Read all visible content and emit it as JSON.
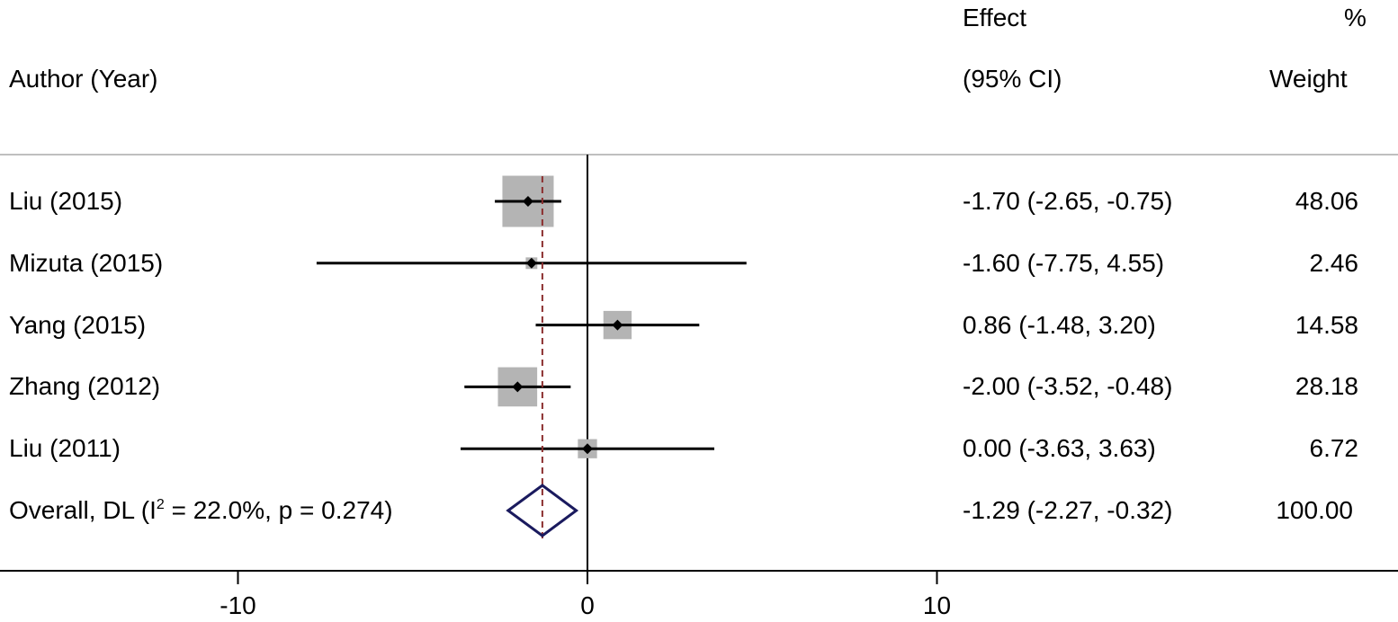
{
  "headers": {
    "study": "Author (Year)",
    "effect_line1": "Effect",
    "effect_line2": "(95% CI)",
    "weight_line1": "%",
    "weight_line2": "Weight"
  },
  "chart_data": {
    "type": "forest",
    "xticks": [
      -10,
      0,
      10
    ],
    "null_line": 0,
    "studies": [
      {
        "label": "Liu (2015)",
        "effect": -1.7,
        "lower": -2.65,
        "upper": -0.75,
        "ci_text": "-1.70 (-2.65, -0.75)",
        "weight": 48.06,
        "weight_text": "48.06"
      },
      {
        "label": "Mizuta (2015)",
        "effect": -1.6,
        "lower": -7.75,
        "upper": 4.55,
        "ci_text": "-1.60 (-7.75, 4.55)",
        "weight": 2.46,
        "weight_text": "2.46"
      },
      {
        "label": "Yang (2015)",
        "effect": 0.86,
        "lower": -1.48,
        "upper": 3.2,
        "ci_text": "0.86 (-1.48, 3.20)",
        "weight": 14.58,
        "weight_text": "14.58"
      },
      {
        "label": "Zhang (2012)",
        "effect": -2.0,
        "lower": -3.52,
        "upper": -0.48,
        "ci_text": "-2.00 (-3.52, -0.48)",
        "weight": 28.18,
        "weight_text": "28.18"
      },
      {
        "label": "Liu (2011)",
        "effect": 0.0,
        "lower": -3.63,
        "upper": 3.63,
        "ci_text": "0.00 (-3.63, 3.63)",
        "weight": 6.72,
        "weight_text": "6.72"
      }
    ],
    "overall": {
      "label_prefix": "Overall, DL (I",
      "label_sup": "2",
      "label_suffix": " = 22.0%, p = 0.274)",
      "effect": -1.29,
      "lower": -2.27,
      "upper": -0.32,
      "ci_text": "-1.29 (-2.27, -0.32)",
      "weight_text": "100.00"
    },
    "colors": {
      "box": "#b4b4b4",
      "diamond": "#1a1a5e",
      "overall_line": "#8b2e2e",
      "ci_line": "#000000",
      "header_rule": "#bfbfbf"
    }
  }
}
